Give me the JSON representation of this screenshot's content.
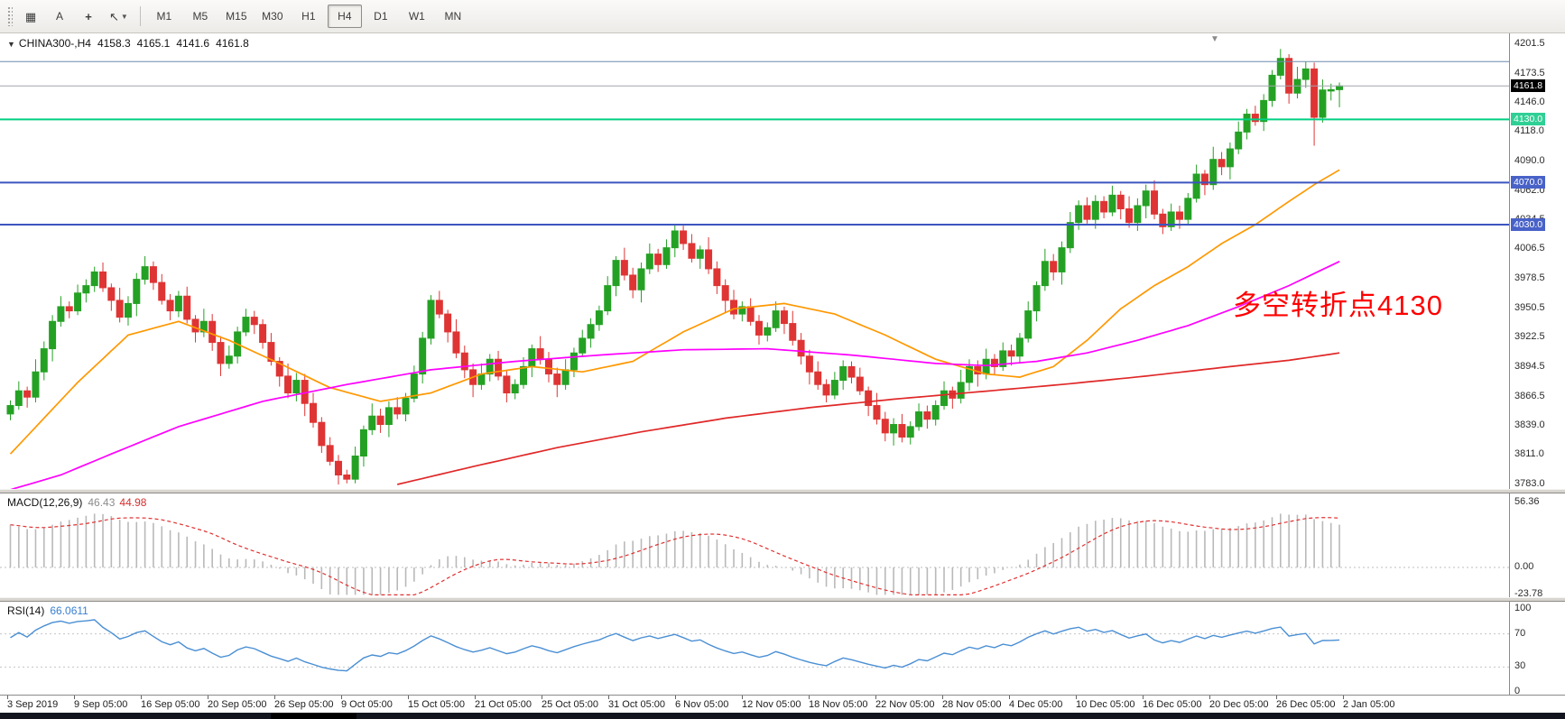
{
  "toolbar": {
    "text_tool": "A",
    "timeframes": [
      "M1",
      "M5",
      "M15",
      "M30",
      "H1",
      "H4",
      "D1",
      "W1",
      "MN"
    ],
    "active_timeframe": "H4",
    "icons": [
      "grid-icon",
      "text-tool-icon",
      "crosshair-icon",
      "cursor-tool-icon",
      "chevron-down-icon"
    ]
  },
  "header": {
    "symbol_period": "CHINA300-,H4",
    "open": "4158.3",
    "high": "4165.1",
    "low": "4141.6",
    "close": "4161.8"
  },
  "annotation": {
    "text": "多空转折点4130",
    "color": "#ff0000"
  },
  "chart_data": {
    "type": "candlestick",
    "symbol": "CHINA300-",
    "timeframe": "H4",
    "colors": {
      "up": "#24a124",
      "down": "#df3434",
      "background": "#ffffff"
    },
    "price_range": [
      3783.0,
      4201.5
    ],
    "price_ticks": [
      "4201.5",
      "4173.5",
      "4146.0",
      "4118.0",
      "4090.0",
      "4062.0",
      "4034.5",
      "4006.5",
      "3978.5",
      "3950.5",
      "3922.5",
      "3894.5",
      "3866.5",
      "3839.0",
      "3811.0",
      "3783.0"
    ],
    "price_badges": [
      {
        "value": "4161.8",
        "price": 4161.8,
        "bg": "#000000",
        "fg": "#ffffff"
      },
      {
        "value": "4130.0",
        "price": 4130.0,
        "bg": "#2fd095",
        "fg": "#ffffff"
      },
      {
        "value": "4070.0",
        "price": 4070.0,
        "bg": "#4862c8",
        "fg": "#ffffff"
      },
      {
        "value": "4030.0",
        "price": 4030.0,
        "bg": "#4862c8",
        "fg": "#ffffff"
      }
    ],
    "hlines": [
      {
        "value": 4185.0,
        "color": "#6b8cad",
        "width": 1
      },
      {
        "value": 4161.8,
        "color": "#a0a6ad",
        "width": 1
      },
      {
        "value": 4130.0,
        "color": "#00cf84",
        "width": 2
      },
      {
        "value": 4070.0,
        "color": "#3c55c0",
        "width": 2
      },
      {
        "value": 4030.0,
        "color": "#3c55c0",
        "width": 2
      }
    ],
    "candles": [
      [
        3850,
        3863,
        3844,
        3858
      ],
      [
        3858,
        3881,
        3854,
        3872
      ],
      [
        3872,
        3876,
        3856,
        3866
      ],
      [
        3866,
        3902,
        3861,
        3890
      ],
      [
        3890,
        3919,
        3882,
        3912
      ],
      [
        3912,
        3944,
        3900,
        3938
      ],
      [
        3938,
        3962,
        3933,
        3952
      ],
      [
        3952,
        3957,
        3941,
        3948
      ],
      [
        3948,
        3973,
        3944,
        3965
      ],
      [
        3965,
        3978,
        3956,
        3972
      ],
      [
        3972,
        3990,
        3966,
        3985
      ],
      [
        3985,
        3994,
        3966,
        3970
      ],
      [
        3970,
        3974,
        3948,
        3958
      ],
      [
        3958,
        3970,
        3937,
        3942
      ],
      [
        3942,
        3962,
        3934,
        3955
      ],
      [
        3955,
        3984,
        3943,
        3978
      ],
      [
        3978,
        4000,
        3973,
        3990
      ],
      [
        3990,
        3995,
        3968,
        3975
      ],
      [
        3975,
        3983,
        3954,
        3958
      ],
      [
        3958,
        3964,
        3939,
        3948
      ],
      [
        3948,
        3967,
        3942,
        3962
      ],
      [
        3962,
        3971,
        3936,
        3940
      ],
      [
        3940,
        3944,
        3918,
        3928
      ],
      [
        3928,
        3950,
        3923,
        3938
      ],
      [
        3938,
        3945,
        3910,
        3918
      ],
      [
        3918,
        3924,
        3886,
        3898
      ],
      [
        3898,
        3915,
        3893,
        3905
      ],
      [
        3905,
        3933,
        3898,
        3928
      ],
      [
        3928,
        3950,
        3924,
        3942
      ],
      [
        3942,
        3948,
        3926,
        3935
      ],
      [
        3935,
        3940,
        3912,
        3918
      ],
      [
        3918,
        3927,
        3896,
        3900
      ],
      [
        3900,
        3904,
        3876,
        3886
      ],
      [
        3886,
        3898,
        3865,
        3870
      ],
      [
        3870,
        3889,
        3862,
        3882
      ],
      [
        3882,
        3888,
        3848,
        3860
      ],
      [
        3860,
        3870,
        3837,
        3842
      ],
      [
        3842,
        3847,
        3813,
        3820
      ],
      [
        3820,
        3828,
        3801,
        3805
      ],
      [
        3805,
        3811,
        3783,
        3792
      ],
      [
        3792,
        3797,
        3784,
        3788
      ],
      [
        3788,
        3819,
        3784,
        3810
      ],
      [
        3810,
        3839,
        3800,
        3835
      ],
      [
        3835,
        3860,
        3830,
        3848
      ],
      [
        3848,
        3855,
        3832,
        3840
      ],
      [
        3840,
        3862,
        3828,
        3856
      ],
      [
        3856,
        3866,
        3845,
        3850
      ],
      [
        3850,
        3870,
        3843,
        3865
      ],
      [
        3865,
        3896,
        3861,
        3888
      ],
      [
        3888,
        3928,
        3879,
        3922
      ],
      [
        3922,
        3963,
        3916,
        3958
      ],
      [
        3958,
        3967,
        3941,
        3945
      ],
      [
        3945,
        3949,
        3918,
        3928
      ],
      [
        3928,
        3940,
        3903,
        3908
      ],
      [
        3908,
        3915,
        3884,
        3892
      ],
      [
        3892,
        3898,
        3866,
        3878
      ],
      [
        3878,
        3898,
        3873,
        3888
      ],
      [
        3888,
        3907,
        3881,
        3902
      ],
      [
        3902,
        3910,
        3882,
        3886
      ],
      [
        3886,
        3892,
        3861,
        3870
      ],
      [
        3870,
        3883,
        3864,
        3878
      ],
      [
        3878,
        3904,
        3874,
        3895
      ],
      [
        3895,
        3916,
        3885,
        3912
      ],
      [
        3912,
        3924,
        3897,
        3902
      ],
      [
        3902,
        3909,
        3880,
        3888
      ],
      [
        3888,
        3894,
        3866,
        3878
      ],
      [
        3878,
        3902,
        3873,
        3892
      ],
      [
        3892,
        3913,
        3885,
        3908
      ],
      [
        3908,
        3930,
        3904,
        3922
      ],
      [
        3922,
        3941,
        3913,
        3935
      ],
      [
        3935,
        3953,
        3929,
        3948
      ],
      [
        3948,
        3981,
        3944,
        3972
      ],
      [
        3972,
        4000,
        3962,
        3996
      ],
      [
        3996,
        4008,
        3977,
        3982
      ],
      [
        3982,
        3989,
        3960,
        3968
      ],
      [
        3968,
        3994,
        3956,
        3988
      ],
      [
        3988,
        4012,
        3983,
        4002
      ],
      [
        4002,
        4007,
        3985,
        3992
      ],
      [
        3992,
        4016,
        3988,
        4008
      ],
      [
        4008,
        4030,
        3999,
        4024
      ],
      [
        4024,
        4029,
        4006,
        4012
      ],
      [
        4012,
        4021,
        3994,
        3998
      ],
      [
        3998,
        4010,
        3988,
        4006
      ],
      [
        4006,
        4018,
        3983,
        3988
      ],
      [
        3988,
        3995,
        3964,
        3972
      ],
      [
        3972,
        3978,
        3946,
        3958
      ],
      [
        3958,
        3968,
        3940,
        3945
      ],
      [
        3945,
        3957,
        3938,
        3952
      ],
      [
        3952,
        3960,
        3934,
        3938
      ],
      [
        3938,
        3944,
        3916,
        3925
      ],
      [
        3925,
        3937,
        3919,
        3932
      ],
      [
        3932,
        3957,
        3928,
        3948
      ],
      [
        3948,
        3952,
        3926,
        3936
      ],
      [
        3936,
        3948,
        3915,
        3920
      ],
      [
        3920,
        3927,
        3897,
        3905
      ],
      [
        3905,
        3911,
        3878,
        3890
      ],
      [
        3890,
        3900,
        3873,
        3878
      ],
      [
        3878,
        3883,
        3861,
        3868
      ],
      [
        3868,
        3890,
        3864,
        3882
      ],
      [
        3882,
        3901,
        3873,
        3895
      ],
      [
        3895,
        3900,
        3879,
        3885
      ],
      [
        3885,
        3894,
        3868,
        3872
      ],
      [
        3872,
        3876,
        3848,
        3858
      ],
      [
        3858,
        3870,
        3840,
        3845
      ],
      [
        3845,
        3852,
        3824,
        3832
      ],
      [
        3832,
        3846,
        3820,
        3840
      ],
      [
        3840,
        3850,
        3823,
        3828
      ],
      [
        3828,
        3843,
        3821,
        3838
      ],
      [
        3838,
        3860,
        3834,
        3852
      ],
      [
        3852,
        3858,
        3836,
        3845
      ],
      [
        3845,
        3863,
        3839,
        3858
      ],
      [
        3858,
        3881,
        3854,
        3872
      ],
      [
        3872,
        3876,
        3855,
        3865
      ],
      [
        3865,
        3892,
        3860,
        3880
      ],
      [
        3880,
        3902,
        3872,
        3895
      ],
      [
        3895,
        3901,
        3876,
        3888
      ],
      [
        3888,
        3912,
        3883,
        3902
      ],
      [
        3902,
        3907,
        3888,
        3895
      ],
      [
        3895,
        3918,
        3891,
        3910
      ],
      [
        3910,
        3916,
        3896,
        3905
      ],
      [
        3905,
        3927,
        3899,
        3922
      ],
      [
        3922,
        3957,
        3918,
        3948
      ],
      [
        3948,
        3976,
        3938,
        3972
      ],
      [
        3972,
        4007,
        3967,
        3995
      ],
      [
        3995,
        4002,
        3977,
        3985
      ],
      [
        3985,
        4014,
        3973,
        4008
      ],
      [
        4008,
        4042,
        4003,
        4032
      ],
      [
        4032,
        4053,
        4025,
        4048
      ],
      [
        4048,
        4056,
        4031,
        4035
      ],
      [
        4035,
        4058,
        4026,
        4052
      ],
      [
        4052,
        4057,
        4036,
        4042
      ],
      [
        4042,
        4067,
        4038,
        4058
      ],
      [
        4058,
        4062,
        4035,
        4045
      ],
      [
        4045,
        4057,
        4027,
        4032
      ],
      [
        4032,
        4055,
        4024,
        4048
      ],
      [
        4048,
        4068,
        4036,
        4062
      ],
      [
        4062,
        4072,
        4035,
        4040
      ],
      [
        4040,
        4045,
        4021,
        4028
      ],
      [
        4028,
        4050,
        4024,
        4042
      ],
      [
        4042,
        4048,
        4026,
        4035
      ],
      [
        4035,
        4060,
        4029,
        4055
      ],
      [
        4055,
        4087,
        4051,
        4078
      ],
      [
        4078,
        4082,
        4058,
        4068
      ],
      [
        4068,
        4104,
        4063,
        4092
      ],
      [
        4092,
        4099,
        4077,
        4085
      ],
      [
        4085,
        4108,
        4073,
        4102
      ],
      [
        4102,
        4128,
        4097,
        4118
      ],
      [
        4118,
        4140,
        4111,
        4135
      ],
      [
        4135,
        4143,
        4124,
        4128
      ],
      [
        4128,
        4154,
        4119,
        4148
      ],
      [
        4148,
        4177,
        4142,
        4172
      ],
      [
        4172,
        4197,
        4168,
        4188
      ],
      [
        4188,
        4192,
        4145,
        4155
      ],
      [
        4155,
        4180,
        4150,
        4168
      ],
      [
        4168,
        4185,
        4160,
        4178
      ],
      [
        4178,
        4184,
        4105,
        4132
      ],
      [
        4132,
        4168,
        4127,
        4158
      ],
      [
        4158,
        4164,
        4148,
        4158.3
      ],
      [
        4158.3,
        4165.1,
        4141.6,
        4161.8
      ]
    ],
    "moving_averages": [
      {
        "name": "ma-fast-line",
        "color": "#ff9800",
        "anchors": [
          [
            0,
            3812
          ],
          [
            8,
            3880
          ],
          [
            14,
            3925
          ],
          [
            20,
            3938
          ],
          [
            26,
            3920
          ],
          [
            32,
            3898
          ],
          [
            38,
            3875
          ],
          [
            44,
            3862
          ],
          [
            50,
            3870
          ],
          [
            56,
            3888
          ],
          [
            62,
            3895
          ],
          [
            68,
            3890
          ],
          [
            74,
            3900
          ],
          [
            80,
            3928
          ],
          [
            86,
            3950
          ],
          [
            92,
            3955
          ],
          [
            98,
            3945
          ],
          [
            104,
            3925
          ],
          [
            110,
            3902
          ],
          [
            116,
            3888
          ],
          [
            120,
            3885
          ],
          [
            124,
            3895
          ],
          [
            128,
            3920
          ],
          [
            132,
            3950
          ],
          [
            136,
            3972
          ],
          [
            140,
            3990
          ],
          [
            144,
            4012
          ],
          [
            148,
            4030
          ],
          [
            152,
            4052
          ],
          [
            155,
            4068
          ],
          [
            158,
            4082
          ]
        ]
      },
      {
        "name": "ma-mid-line",
        "color": "#ff00ff",
        "anchors": [
          [
            0,
            3778
          ],
          [
            6,
            3792
          ],
          [
            12,
            3812
          ],
          [
            20,
            3838
          ],
          [
            30,
            3862
          ],
          [
            40,
            3878
          ],
          [
            50,
            3892
          ],
          [
            60,
            3900
          ],
          [
            70,
            3906
          ],
          [
            80,
            3911
          ],
          [
            90,
            3912
          ],
          [
            100,
            3906
          ],
          [
            110,
            3898
          ],
          [
            116,
            3896
          ],
          [
            122,
            3900
          ],
          [
            128,
            3908
          ],
          [
            134,
            3920
          ],
          [
            140,
            3934
          ],
          [
            146,
            3952
          ],
          [
            152,
            3972
          ],
          [
            158,
            3995
          ]
        ]
      },
      {
        "name": "ma-slow-line",
        "color": "#e02828",
        "anchors": [
          [
            46,
            3783
          ],
          [
            55,
            3800
          ],
          [
            65,
            3818
          ],
          [
            75,
            3833
          ],
          [
            85,
            3846
          ],
          [
            95,
            3856
          ],
          [
            105,
            3864
          ],
          [
            115,
            3871
          ],
          [
            125,
            3878
          ],
          [
            135,
            3886
          ],
          [
            145,
            3895
          ],
          [
            152,
            3901
          ],
          [
            158,
            3908
          ]
        ]
      }
    ],
    "macd": {
      "label": "MACD(12,26,9)",
      "value_main": "46.43",
      "value_signal": "44.98",
      "ticks": [
        "56.36",
        "0.00",
        "-23.78"
      ],
      "range": [
        -23.78,
        56.36
      ],
      "histogram_color": "#b9b9b9",
      "signal_color": "#e03030"
    },
    "rsi": {
      "label": "RSI(14)",
      "value": "66.0611",
      "ticks": [
        "100",
        "70",
        "30",
        "0"
      ],
      "levels": [
        70,
        30
      ],
      "color": "#4a8fd4"
    },
    "time_labels": [
      "3 Sep 2019",
      "9 Sep 05:00",
      "16 Sep 05:00",
      "20 Sep 05:00",
      "26 Sep 05:00",
      "9 Oct 05:00",
      "15 Oct 05:00",
      "21 Oct 05:00",
      "25 Oct 05:00",
      "31 Oct 05:00",
      "6 Nov 05:00",
      "12 Nov 05:00",
      "18 Nov 05:00",
      "22 Nov 05:00",
      "28 Nov 05:00",
      "4 Dec 05:00",
      "10 Dec 05:00",
      "16 Dec 05:00",
      "20 Dec 05:00",
      "26 Dec 05:00",
      "2 Jan 05:00"
    ]
  }
}
